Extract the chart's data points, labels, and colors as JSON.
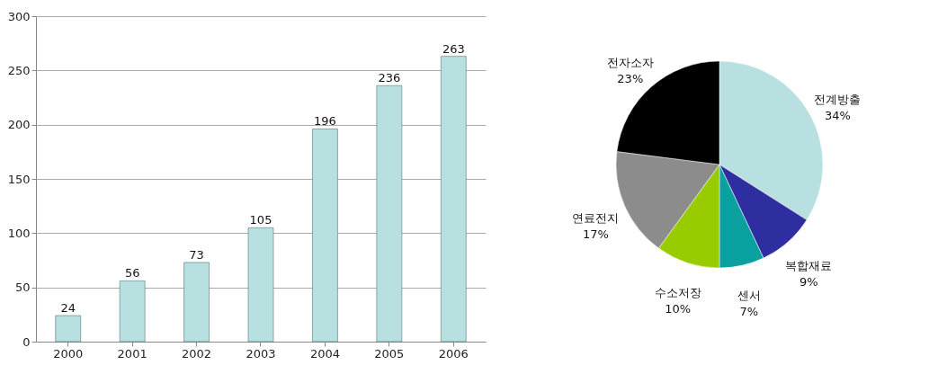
{
  "chart_data": [
    {
      "type": "bar",
      "categories": [
        "2000",
        "2001",
        "2002",
        "2003",
        "2004",
        "2005",
        "2006"
      ],
      "values": [
        24,
        56,
        73,
        105,
        196,
        236,
        263
      ],
      "color": "#b8e0e0",
      "ylim": [
        0,
        300
      ],
      "yticks": [
        0,
        50,
        100,
        150,
        200,
        250,
        300
      ],
      "grid": "y",
      "data_labels": true
    },
    {
      "type": "pie",
      "categories": [
        "전계방출",
        "복합재료",
        "센서",
        "수소저장",
        "연료전지",
        "전자소자"
      ],
      "values": [
        34,
        9,
        7,
        10,
        17,
        23
      ],
      "colors": [
        "#b8e0e0",
        "#2e2ea0",
        "#0aa0a0",
        "#99cc00",
        "#8c8c8c",
        "#000000"
      ],
      "value_labels": [
        "34%",
        "9%",
        "7%",
        "10%",
        "17%",
        "23%"
      ]
    }
  ]
}
